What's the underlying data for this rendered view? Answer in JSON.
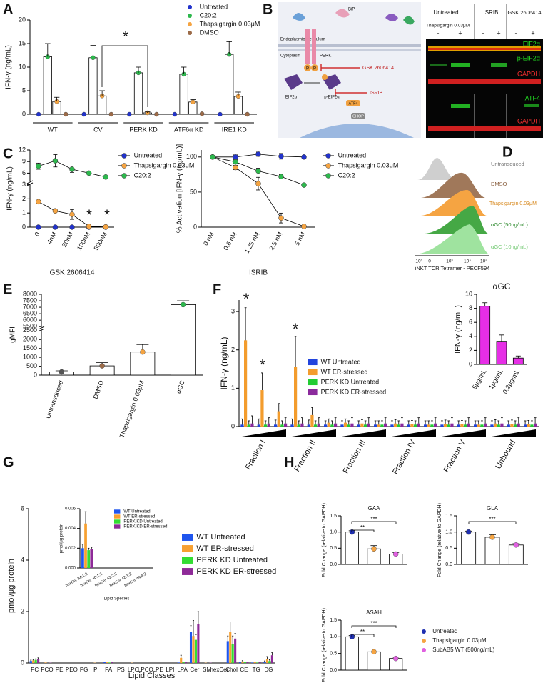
{
  "panel_labels": [
    "A",
    "B",
    "C",
    "D",
    "E",
    "F",
    "G",
    "H"
  ],
  "panel_b": {
    "diagram": {
      "er_label": "Endoplasmic Reticulum",
      "cytoplasm_label": "Cytoplasm",
      "bip": "BiP",
      "perk": "PERK",
      "inhibitor_1": "GSK 2606414",
      "inhibitor_2": "ISRIB",
      "eif2a": "EIF2α",
      "p_eif2a": "p-EIF2α",
      "atf4": "ATF4",
      "chop": "CHOP",
      "phospho": "P"
    },
    "blot": {
      "column_groups": [
        "Untreated",
        "ISRIB",
        "GSK 2606414"
      ],
      "treatment_label": "Thapsigargin 0.03μM",
      "lanes": [
        "-",
        "+",
        "-",
        "+",
        "-",
        "+"
      ],
      "rows": [
        "EIF2α",
        "p-EIF2α",
        "GAPDH",
        "ATF4",
        "GAPDH"
      ]
    }
  },
  "panel_d": {
    "legend": [
      "Untransduced",
      "DMSO",
      "Thapsigargin 0.03μM",
      "αGC (50ng/mL)",
      "αGC (10ng/mL)"
    ],
    "xlabel": "iNKT TCR Tetramer - PECF594",
    "xticks": [
      "-10³",
      "0",
      "10³",
      "10⁴",
      "10⁵"
    ]
  },
  "chart_data": [
    {
      "type": "bar",
      "ylabel": "IFN-γ (ng/mL)",
      "categories": [
        "WT",
        "CV",
        "PERK KD",
        "ATF6α KD",
        "IRE1 KD"
      ],
      "series": [
        {
          "name": "Untreated",
          "color": "#2233cc",
          "values": [
            0,
            0,
            0,
            0,
            0
          ]
        },
        {
          "name": "C20:2",
          "color": "#2db84d",
          "values": [
            12.2,
            12,
            8.8,
            8.5,
            12.7
          ],
          "errors": [
            2.8,
            2.6,
            1.2,
            1.5,
            2.7
          ]
        },
        {
          "name": "Thapsigargin 0.03μM",
          "color": "#f5a442",
          "values": [
            2.7,
            3.9,
            0.3,
            2.6,
            3.8
          ],
          "errors": [
            0.9,
            1.1,
            0.2,
            0.5,
            0.9
          ]
        },
        {
          "name": "DMSO",
          "color": "#9c6b48",
          "values": [
            0,
            0,
            0,
            0.1,
            0
          ]
        }
      ],
      "ylim": [
        0,
        20
      ],
      "yticks": [
        0,
        5,
        10,
        15,
        20
      ],
      "annotations": [
        "*"
      ]
    },
    {
      "type": "line",
      "xlabel": "GSK 2606414",
      "ylabel": "IFN-γ (ng/mL)",
      "categories": [
        "0",
        "4nM",
        "20nM",
        "100nM",
        "500nM"
      ],
      "series": [
        {
          "name": "Untreated",
          "color": "#2233cc",
          "values": [
            0,
            0,
            0,
            0,
            0
          ]
        },
        {
          "name": "Thapsigargin 0.03μM",
          "color": "#f5a442",
          "values": [
            1.8,
            1.15,
            0.9,
            0.05,
            0.02
          ],
          "errors": [
            0.1,
            0.05,
            0.35,
            0.03,
            0.01
          ]
        },
        {
          "name": "C20:2",
          "color": "#2db84d",
          "values": [
            7.8,
            9.2,
            7,
            6,
            5
          ],
          "errors": [
            0.8,
            1.6,
            0.8,
            0.3,
            0.2
          ]
        }
      ],
      "ylim": [
        0,
        12
      ],
      "yticks": [
        0,
        1,
        2,
        3,
        6,
        9,
        12
      ],
      "axis_break": [
        3,
        4
      ],
      "annotations": [
        "*",
        "*"
      ]
    },
    {
      "type": "line",
      "xlabel": "ISRIB",
      "ylabel": "% Activation [IFN-γ (ng/mL)]",
      "categories": [
        "0 nM",
        "0.6 nM",
        "1.25 nM",
        "2.5 nM",
        "5 nM"
      ],
      "series": [
        {
          "name": "Untreated",
          "color": "#2233cc",
          "values": [
            100,
            100,
            104,
            101,
            100
          ],
          "errors": [
            2,
            3,
            3,
            4,
            2
          ]
        },
        {
          "name": "Thapsigargin 0.03μM",
          "color": "#f5a442",
          "values": [
            100,
            85,
            62,
            13,
            1
          ],
          "errors": [
            2,
            3,
            9,
            7,
            1
          ]
        },
        {
          "name": "C20:2",
          "color": "#2db84d",
          "values": [
            100,
            93,
            80,
            72,
            60
          ],
          "errors": [
            2,
            3,
            4,
            3,
            2
          ]
        }
      ],
      "ylim": [
        0,
        110
      ],
      "yticks": [
        0,
        50,
        100
      ]
    },
    {
      "type": "bar",
      "ylabel": "gMFI",
      "categories": [
        "Untransduced",
        "DMSO",
        "Thapsigargin 0.03μM",
        "αGC"
      ],
      "values": [
        180,
        520,
        1300,
        7200
      ],
      "errors": [
        60,
        180,
        420,
        300
      ],
      "colors": [
        "#555555",
        "#9c6b48",
        "#f5a442",
        "#2db84d"
      ],
      "ylim": [
        0,
        8000
      ],
      "yticks": [
        0,
        500,
        1000,
        1500,
        2000,
        2500,
        5500,
        6000,
        6500,
        7000,
        7500,
        8000
      ],
      "axis_break": [
        2500,
        5500
      ]
    },
    {
      "type": "bar",
      "ylabel": "IFN-γ (ng/mL)",
      "categories": [
        "Fraction I",
        null,
        null,
        "Fraction II",
        null,
        null,
        "Fraction III",
        null,
        null,
        "Fraction IV",
        null,
        null,
        "Fraction V",
        null,
        null,
        "Unbound",
        null,
        null
      ],
      "series": [
        {
          "name": "WT Untreated",
          "color": "#2244dd",
          "values": [
            0.05,
            0.05,
            0.05,
            0.05,
            0.05,
            0.05,
            0.05,
            0.05,
            0.05,
            0.05,
            0.05,
            0.05,
            0.05,
            0.05,
            0.05,
            0.05,
            0.05,
            0.05
          ],
          "errors": [
            0.15,
            0.15,
            0.12,
            0.15,
            0.12,
            0.1,
            0.1,
            0.1,
            0.1,
            0.1,
            0.1,
            0.1,
            0.1,
            0.1,
            0.1,
            0.1,
            0.1,
            0.1
          ]
        },
        {
          "name": "WT ER-stressed",
          "color": "#f39c2d",
          "values": [
            2.25,
            0.95,
            0.4,
            1.55,
            0.3,
            0.1,
            0.1,
            0.08,
            0.05,
            0.08,
            0.06,
            0.05,
            0.07,
            0.06,
            0.05,
            0.08,
            0.07,
            0.06
          ],
          "errors": [
            0.85,
            0.45,
            0.2,
            0.8,
            0.2,
            0.1,
            0.1,
            0.1,
            0.1,
            0.1,
            0.1,
            0.1,
            0.1,
            0.1,
            0.1,
            0.1,
            0.1,
            0.1
          ]
        },
        {
          "name": "PERK KD Untreated",
          "color": "#22cc33",
          "values": [
            0.05,
            0.05,
            0.05,
            0.05,
            0.05,
            0.05,
            0.05,
            0.05,
            0.05,
            0.05,
            0.05,
            0.05,
            0.05,
            0.05,
            0.05,
            0.05,
            0.05,
            0.05
          ],
          "errors": [
            0.1,
            0.1,
            0.1,
            0.1,
            0.1,
            0.1,
            0.1,
            0.1,
            0.1,
            0.1,
            0.1,
            0.1,
            0.1,
            0.1,
            0.1,
            0.1,
            0.1,
            0.1
          ]
        },
        {
          "name": "PERK KD ER-stressed",
          "color": "#8b2a9c",
          "values": [
            0.08,
            0.08,
            0.08,
            0.08,
            0.08,
            0.08,
            0.08,
            0.08,
            0.08,
            0.08,
            0.08,
            0.08,
            0.08,
            0.08,
            0.08,
            0.08,
            0.08,
            0.08
          ],
          "errors": [
            0.2,
            0.15,
            0.15,
            0.15,
            0.15,
            0.15,
            0.15,
            0.15,
            0.15,
            0.15,
            0.15,
            0.15,
            0.15,
            0.15,
            0.15,
            0.15,
            0.15,
            0.15
          ]
        }
      ],
      "ylim": [
        0,
        3.3
      ],
      "yticks": [
        0,
        1,
        2,
        3
      ],
      "annotations": [
        "*",
        "*",
        "*"
      ]
    },
    {
      "type": "bar",
      "title": "αGC",
      "ylabel": "IFN-γ (ng/mL)",
      "categories": [
        "5μg/mL",
        "1μg/mL",
        "0.2μg/mL"
      ],
      "values": [
        8.3,
        3.3,
        0.9
      ],
      "errors": [
        0.5,
        0.9,
        0.3
      ],
      "color": "#e62ee6",
      "ylim": [
        0,
        10
      ],
      "yticks": [
        0,
        2,
        4,
        6,
        8,
        10
      ]
    },
    {
      "type": "bar",
      "ylabel": "pmol/μg protein",
      "xlabel": "Lipid Classes",
      "categories": [
        "PC",
        "PCO",
        "PE",
        "PEO",
        "PG",
        "PI",
        "PA",
        "PS",
        "LPC",
        "LPCO",
        "LPE",
        "LPI",
        "LPA",
        "Cer",
        "SM",
        "hexCer",
        "Chol",
        "CE",
        "TG",
        "DG"
      ],
      "series": [
        {
          "name": "WT Untreated",
          "color": "#1f55ee",
          "values": [
            0.08,
            0,
            0,
            0,
            0,
            0,
            0.03,
            0,
            0,
            0,
            0,
            0,
            0.02,
            1.2,
            0,
            0,
            0.85,
            0.03,
            0.02,
            0.05
          ],
          "errors": [
            0.03,
            null,
            null,
            null,
            null,
            null,
            null,
            null,
            null,
            null,
            null,
            null,
            null,
            0.25,
            null,
            null,
            0.2,
            null,
            null,
            0.03
          ]
        },
        {
          "name": "WT ER-stressed",
          "color": "#f7a030",
          "values": [
            0.1,
            0.02,
            0,
            0,
            0,
            0.01,
            0.05,
            0,
            0.01,
            0,
            0,
            0,
            0.2,
            1.05,
            0.01,
            0,
            1.2,
            0.06,
            0.04,
            0.15
          ],
          "errors": [
            0.04,
            null,
            null,
            null,
            null,
            null,
            null,
            null,
            null,
            null,
            null,
            null,
            0.1,
            0.6,
            null,
            null,
            0.4,
            0.03,
            null,
            0.1
          ]
        },
        {
          "name": "PERK KD Untreated",
          "color": "#33dd33",
          "values": [
            0.12,
            0,
            0,
            0,
            0,
            0,
            0.02,
            0,
            0,
            0,
            0,
            0,
            0.03,
            0.9,
            0,
            0,
            0.75,
            0.03,
            0.02,
            0.08
          ],
          "errors": [
            0.04,
            null,
            null,
            null,
            null,
            null,
            null,
            null,
            null,
            null,
            null,
            null,
            null,
            0.2,
            null,
            null,
            0.3,
            null,
            null,
            0.05
          ]
        },
        {
          "name": "PERK KD ER-stressed",
          "color": "#8e2a98",
          "values": [
            0.15,
            0.01,
            0,
            0,
            0,
            0,
            0.03,
            0,
            0,
            0,
            0,
            0,
            0.05,
            1.5,
            0.01,
            0,
            0.95,
            0.03,
            0.05,
            0.3
          ],
          "errors": [
            0.05,
            null,
            null,
            null,
            null,
            null,
            null,
            null,
            null,
            null,
            null,
            null,
            null,
            0.5,
            null,
            null,
            0.2,
            null,
            null,
            0.1
          ]
        }
      ],
      "ylim": [
        0,
        6
      ],
      "yticks": [
        0,
        2,
        4,
        6
      ]
    },
    {
      "type": "bar",
      "ylabel": "pmol/μg protein",
      "xlabel": "Lipid Species",
      "categories": [
        "hexCer 34:1:2",
        "hexCer 40:1:2",
        "hexCer 42:2:2",
        "hexCer 42:1:2",
        "hexCer 44:4:2"
      ],
      "series": [
        {
          "name": "WT Untreated",
          "color": "#1f55ee",
          "values": [
            0.002,
            0,
            0,
            0,
            0
          ],
          "errors": [
            0.0004,
            null,
            null,
            null,
            null
          ]
        },
        {
          "name": "WT ER-stressed",
          "color": "#f7a030",
          "values": [
            0.0045,
            0,
            0,
            0,
            0
          ],
          "errors": [
            0.0012,
            null,
            null,
            null,
            null
          ]
        },
        {
          "name": "PERK KD Untreated",
          "color": "#33dd33",
          "values": [
            0.0018,
            0,
            0,
            0,
            0
          ],
          "errors": [
            0.0002,
            null,
            null,
            null,
            null
          ]
        },
        {
          "name": "PERK KD ER-stressed",
          "color": "#8e2a98",
          "values": [
            0.0019,
            0,
            0,
            0,
            0
          ],
          "errors": [
            0.0002,
            null,
            null,
            null,
            null
          ]
        }
      ],
      "ylim": [
        0,
        0.006
      ],
      "yticks": [
        {
          "value": 0,
          "label": "0.000"
        },
        {
          "value": 0.002,
          "label": "0.002"
        },
        {
          "value": 0.004,
          "label": "0.004"
        },
        {
          "value": 0.006,
          "label": "0.006"
        }
      ]
    },
    {
      "type": "bar",
      "title": "GAA",
      "ylabel": "Fold Change (relative to GAPDH)",
      "categories": [
        null,
        null,
        null
      ],
      "values": [
        1.0,
        0.48,
        0.32
      ],
      "errors": [
        0.04,
        0.1,
        0.05
      ],
      "colors": [
        "#1f2fb0",
        "#f5a442",
        "#e060e0"
      ],
      "ylim": [
        0,
        1.5
      ],
      "yticks": [
        {
          "value": 0,
          "label": "0.0"
        },
        0.5,
        {
          "value": 1,
          "label": "1.0"
        },
        1.5
      ],
      "annotations": [
        "**",
        "***"
      ]
    },
    {
      "type": "bar",
      "title": "GLA",
      "ylabel": "Fold Change (relative to GAPDH)",
      "categories": [
        null,
        null,
        null
      ],
      "values": [
        1.0,
        0.84,
        0.6
      ],
      "errors": [
        0.03,
        0.08,
        0.04
      ],
      "colors": [
        "#1f2fb0",
        "#f5a442",
        "#e060e0"
      ],
      "ylim": [
        0,
        1.5
      ],
      "yticks": [
        {
          "value": 0,
          "label": "0.0"
        },
        0.5,
        {
          "value": 1,
          "label": "1.0"
        },
        1.5
      ],
      "annotations": [
        "***"
      ]
    },
    {
      "type": "bar",
      "title": "ASAH",
      "ylabel": "Fold Change (relative to GAPDH)",
      "categories": [
        null,
        null,
        null
      ],
      "values": [
        1.0,
        0.55,
        0.35
      ],
      "errors": [
        0.04,
        0.08,
        0.04
      ],
      "colors": [
        "#1f2fb0",
        "#f5a442",
        "#e060e0"
      ],
      "legend_labels": [
        "Untreated",
        "Thapsigargin 0.03μM",
        "SubAB5 WT (500ng/mL)"
      ],
      "ylim": [
        0,
        1.5
      ],
      "yticks": [
        {
          "value": 0,
          "label": "0.0"
        },
        0.5,
        {
          "value": 1,
          "label": "1.0"
        },
        1.5
      ],
      "annotations": [
        "**",
        "***"
      ]
    }
  ]
}
